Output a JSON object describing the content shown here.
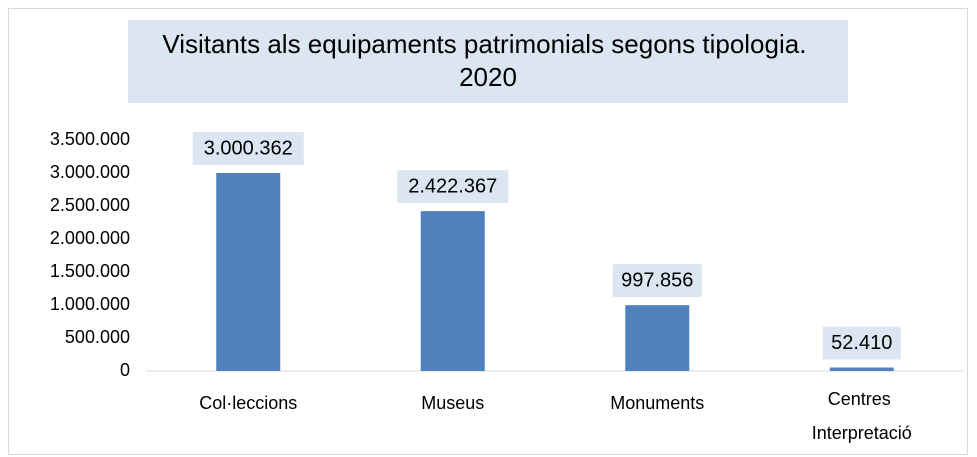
{
  "chart_data": {
    "type": "bar",
    "title": "Visitants als equipaments patrimonials segons tipologia. 2020",
    "categories": [
      "Col·leccions",
      "Museus",
      "Monuments",
      "Centres Interpretació"
    ],
    "values": [
      3000362,
      2422367,
      997856,
      52410
    ],
    "value_labels": [
      "3.000.362",
      "2.422.367",
      "997.856",
      "52.410"
    ],
    "color": "#4f81bd",
    "ylim": [
      0,
      3500000
    ],
    "yticks": [
      0,
      {
        "value": 500000,
        "label": "500.000"
      },
      {
        "value": 1000000,
        "label": "1.000.000"
      },
      {
        "value": 1500000,
        "label": "1.500.000"
      },
      {
        "value": 2000000,
        "label": "2.000.000"
      },
      {
        "value": 2500000,
        "label": "2.500.000"
      },
      {
        "value": 3000000,
        "label": "3.000.000"
      },
      {
        "value": 3500000,
        "label": "3.500.000"
      }
    ],
    "grid": false
  }
}
